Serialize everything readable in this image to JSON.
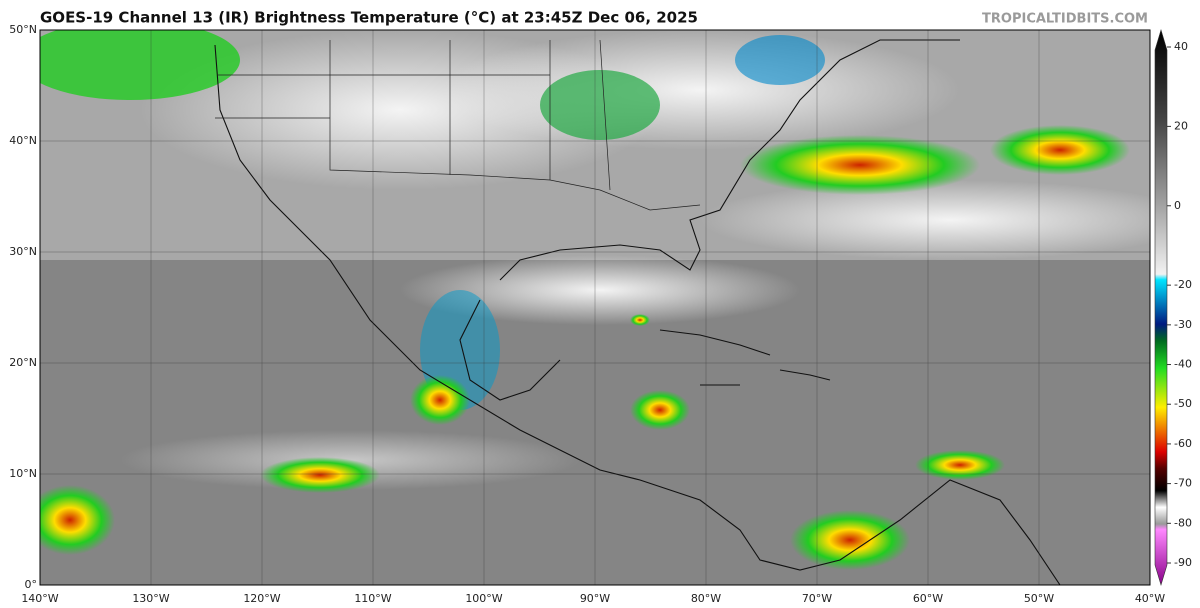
{
  "header": {
    "title": "GOES-19 Channel 13 (IR) Brightness Temperature (°C) at 23:45Z Dec 06, 2025",
    "watermark": "TROPICALTIDBITS.COM"
  },
  "map": {
    "lat_ticks": [
      {
        "value": 50,
        "label": "50°N"
      },
      {
        "value": 40,
        "label": "40°N"
      },
      {
        "value": 30,
        "label": "30°N"
      },
      {
        "value": 20,
        "label": "20°N"
      },
      {
        "value": 10,
        "label": "10°N"
      },
      {
        "value": 0,
        "label": "0°"
      }
    ],
    "lon_ticks": [
      {
        "value": -140,
        "label": "140°W"
      },
      {
        "value": -130,
        "label": "130°W"
      },
      {
        "value": -120,
        "label": "120°W"
      },
      {
        "value": -110,
        "label": "110°W"
      },
      {
        "value": -100,
        "label": "100°W"
      },
      {
        "value": -90,
        "label": "90°W"
      },
      {
        "value": -80,
        "label": "80°W"
      },
      {
        "value": -70,
        "label": "70°W"
      },
      {
        "value": -60,
        "label": "60°W"
      },
      {
        "value": -50,
        "label": "50°W"
      },
      {
        "value": -40,
        "label": "40°W"
      }
    ]
  },
  "colorbar": {
    "ticks": [
      40,
      20,
      0,
      -20,
      -30,
      -40,
      -50,
      -60,
      -70,
      -80,
      -90
    ]
  }
}
